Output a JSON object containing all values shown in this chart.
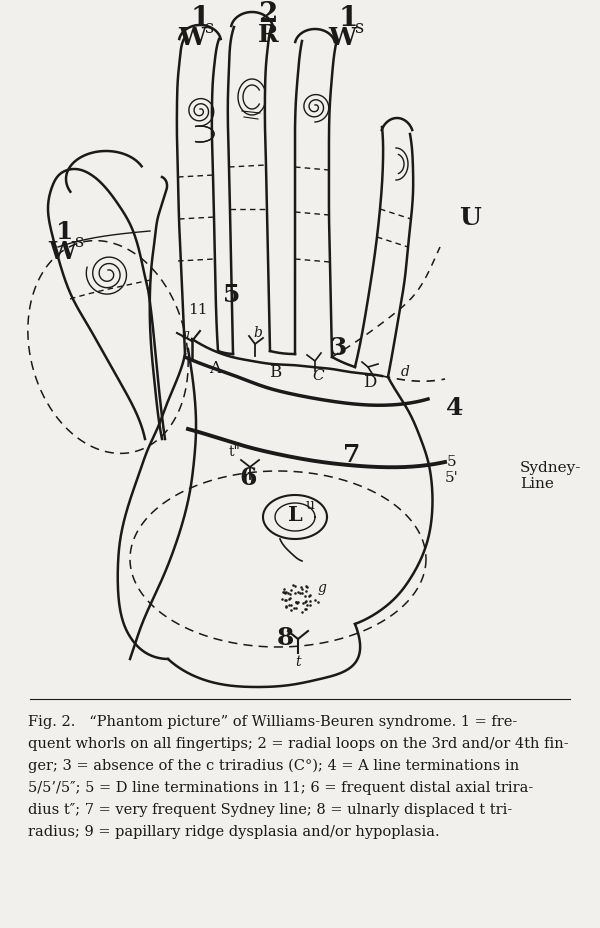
{
  "bg_color": "#f2f0ec",
  "line_color": "#1a1a1a",
  "caption_lines": [
    "Fig. 2.   “Phantom picture” of Williams-Beuren syndrome. 1 = fre-",
    "quent whorls on all fingertips; 2 = radial loops on the 3rd and/or 4th fin-",
    "ger; 3 = absence of the c triradius (C°); 4 = A line terminations in",
    "5/5’/5″; 5 = D line terminations in 11; 6 = frequent distal axial trira-",
    "dius t″; 7 = very frequent Sydney line; 8 = ulnarly displaced t tri-",
    "radius; 9 = papillary ridge dysplasia and/or hypoplasia."
  ],
  "figsize": [
    6.0,
    9.29
  ],
  "dpi": 100
}
